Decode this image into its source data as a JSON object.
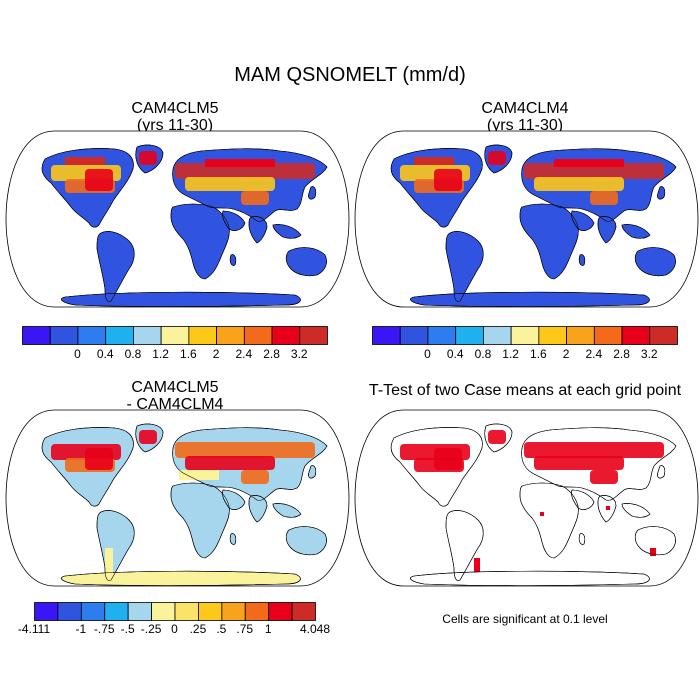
{
  "title": "MAM QSNOMELT (mm/d)",
  "panels": {
    "cam4clm5": {
      "title_line1": "CAM4CLM5",
      "title_line2": "(yrs 11-30)"
    },
    "cam4clm4": {
      "title_line1": "CAM4CLM4",
      "title_line2": "(yrs 11-30)"
    },
    "diff": {
      "title_line1": "CAM4CLM5",
      "title_line2": "- CAM4CLM4"
    },
    "ttest": {
      "title_line1": "T-Test of two Case means at each grid point"
    }
  },
  "colorbar_abs": {
    "colors": [
      "#3a16f4",
      "#3154e0",
      "#2d7df0",
      "#1fb0f0",
      "#a6d6ee",
      "#fbf29c",
      "#fdc81a",
      "#f9a21b",
      "#f26a1a",
      "#e8001a",
      "#cd2b28"
    ],
    "labels": [
      "0",
      "0.4",
      "0.8",
      "1.2",
      "1.6",
      "2",
      "2.4",
      "2.8",
      "3.2"
    ]
  },
  "colorbar_diff": {
    "colors": [
      "#3a16f4",
      "#3154e0",
      "#2d7df0",
      "#1fb0f0",
      "#a6d6ee",
      "#fbf29c",
      "#fbe36a",
      "#fdc81a",
      "#f9a21b",
      "#f26a1a",
      "#e8001a",
      "#cd2b28"
    ],
    "labels": [
      "-4.111",
      "-1",
      "-.75",
      "-.5",
      "-.25",
      "0",
      ".25",
      ".5",
      ".75",
      "1",
      "4.048"
    ]
  },
  "map_colors": {
    "ocean": "#ffffff",
    "land_low": "#3154e0",
    "diff_land": "#a6d6ee",
    "diff_pos": "#fbf29c",
    "signif": "#e8001a",
    "snow_hot": [
      "#fdc81a",
      "#f26a1a",
      "#e8001a",
      "#cd2b28"
    ]
  },
  "footnote": "Cells are significant at 0.1 level"
}
